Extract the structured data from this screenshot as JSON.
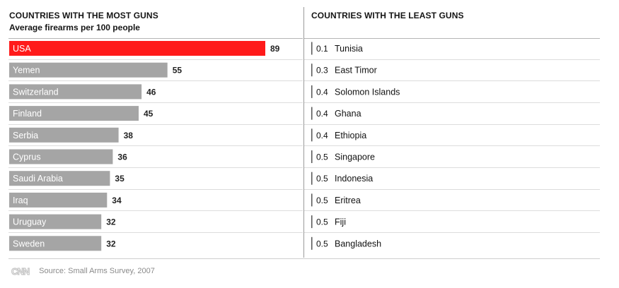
{
  "left_panel": {
    "title": "COUNTRIES WITH THE MOST GUNS",
    "subtitle": "Average firearms per 100 people"
  },
  "right_panel": {
    "title": "COUNTRIES WITH THE LEAST GUNS"
  },
  "colors": {
    "highlight": "#ff1a1a",
    "bar": "#a5a5a5",
    "highlight_value": "#e8271e",
    "least_tick": "#555555"
  },
  "chart_data": [
    {
      "type": "bar",
      "orientation": "horizontal",
      "title": "COUNTRIES WITH THE MOST GUNS",
      "subtitle": "Average firearms per 100 people",
      "categories": [
        "USA",
        "Yemen",
        "Switzerland",
        "Finland",
        "Serbia",
        "Cyprus",
        "Saudi Arabia",
        "Iraq",
        "Uruguay",
        "Sweden"
      ],
      "values": [
        89,
        55,
        46,
        45,
        38,
        36,
        35,
        34,
        32,
        32
      ],
      "highlighted": "USA",
      "xlim": [
        0,
        100
      ],
      "grid": false
    },
    {
      "type": "table",
      "title": "COUNTRIES WITH THE LEAST GUNS",
      "rows": [
        {
          "value": "0.1",
          "country": "Tunisia"
        },
        {
          "value": "0.3",
          "country": "East Timor"
        },
        {
          "value": "0.4",
          "country": "Solomon Islands"
        },
        {
          "value": "0.4",
          "country": "Ghana"
        },
        {
          "value": "0.4",
          "country": "Ethiopia"
        },
        {
          "value": "0.5",
          "country": "Singapore"
        },
        {
          "value": "0.5",
          "country": "Indonesia"
        },
        {
          "value": "0.5",
          "country": "Eritrea"
        },
        {
          "value": "0.5",
          "country": "Fiji"
        },
        {
          "value": "0.5",
          "country": "Bangladesh"
        }
      ]
    }
  ],
  "footer": {
    "logo": "CNN",
    "source": "Source: Small Arms Survey, 2007"
  }
}
